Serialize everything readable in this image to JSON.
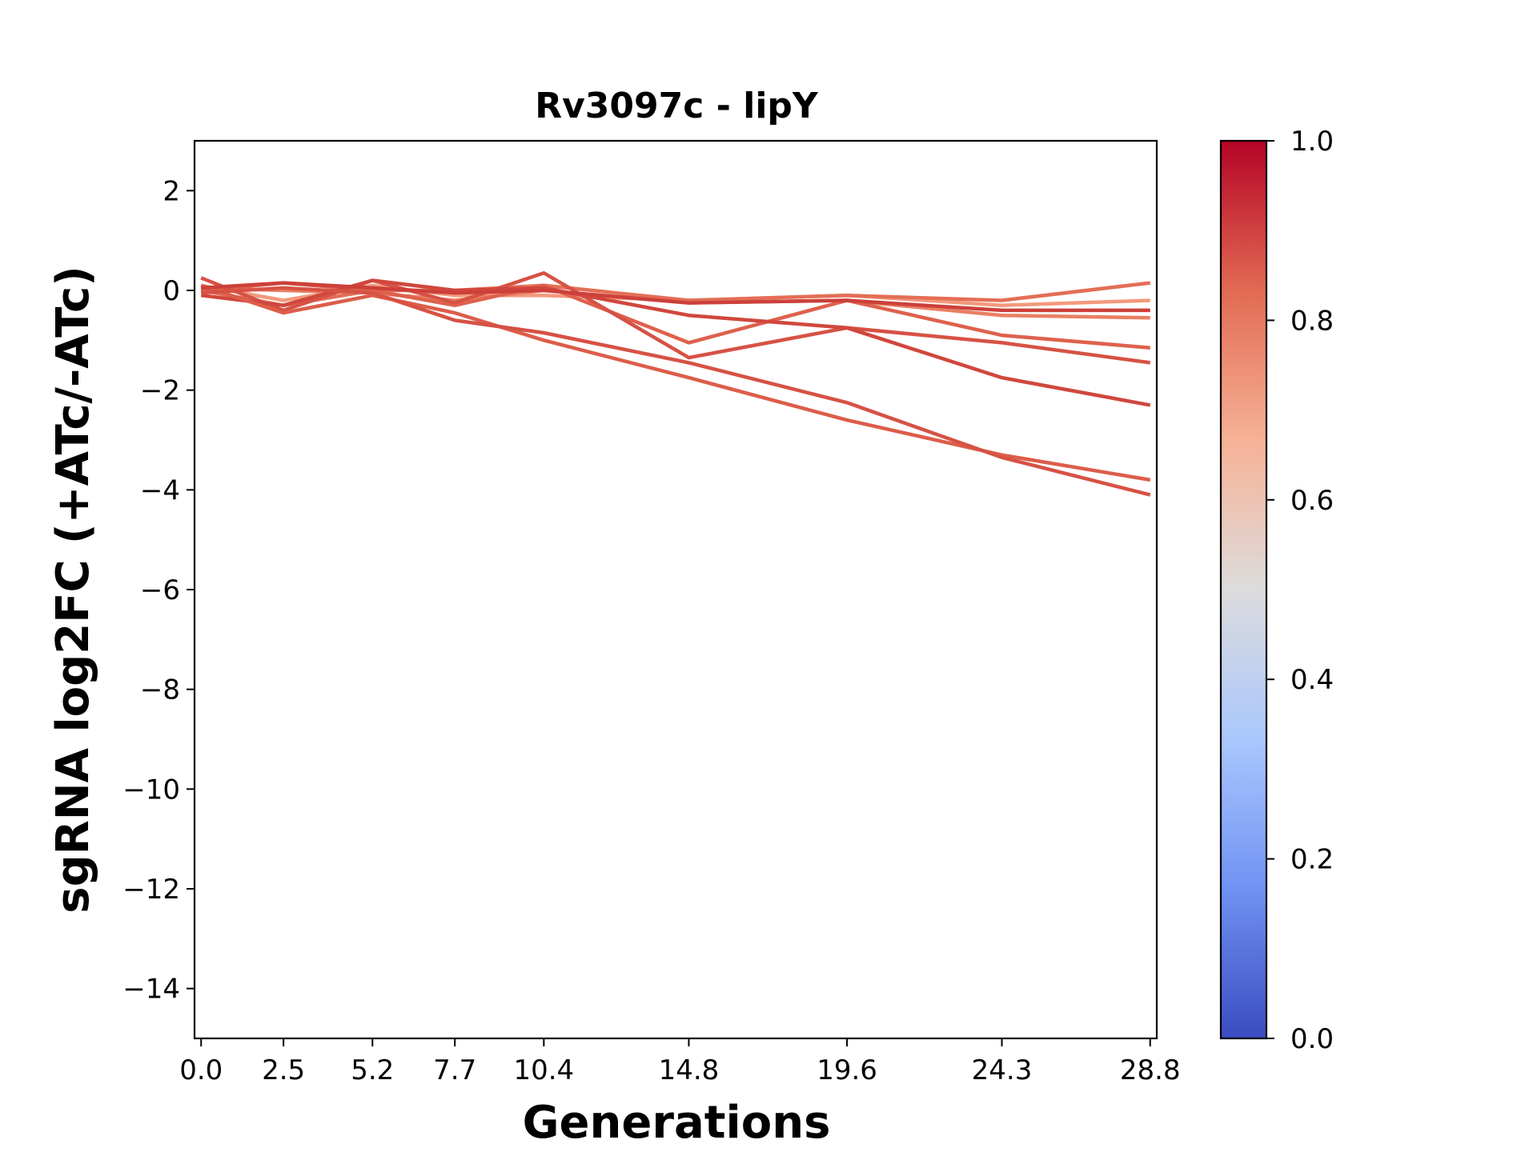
{
  "chart_data": {
    "type": "line",
    "title": "Rv3097c - lipY",
    "xlabel": "Generations",
    "ylabel": "sgRNA log2FC (+ATc/-ATc)",
    "x": [
      0.0,
      2.5,
      5.2,
      7.7,
      10.4,
      14.8,
      19.6,
      24.3,
      28.8
    ],
    "x_tick_labels": [
      "0.0",
      "2.5",
      "5.2",
      "7.7",
      "10.4",
      "14.8",
      "19.6",
      "24.3",
      "28.8"
    ],
    "ylim": [
      -15,
      3
    ],
    "y_ticks": [
      2,
      0,
      -2,
      -4,
      -6,
      -8,
      -10,
      -12,
      -14
    ],
    "y_tick_labels": [
      "2",
      "0",
      "−2",
      "−4",
      "−6",
      "−8",
      "−10",
      "−12",
      "−14"
    ],
    "grid": false,
    "series": [
      {
        "color_value": 0.72,
        "color": "#f29a7c",
        "values": [
          0.1,
          -0.2,
          0.1,
          -0.1,
          -0.1,
          -0.2,
          -0.1,
          -0.3,
          -0.2
        ]
      },
      {
        "color_value": 0.78,
        "color": "#ea7f63",
        "values": [
          0.05,
          0.0,
          -0.05,
          -0.2,
          0.0,
          -0.25,
          -0.2,
          -0.5,
          -0.55
        ]
      },
      {
        "color_value": 0.82,
        "color": "#e46e56",
        "values": [
          0.0,
          -0.3,
          0.0,
          0.0,
          0.1,
          -0.2,
          -0.1,
          -0.2,
          0.15
        ]
      },
      {
        "color_value": 0.85,
        "color": "#de614d",
        "values": [
          0.0,
          0.15,
          0.0,
          -0.3,
          0.1,
          -1.05,
          -0.2,
          -0.9,
          -1.15
        ]
      },
      {
        "color_value": 0.88,
        "color": "#d65244",
        "values": [
          0.25,
          -0.4,
          0.2,
          -0.25,
          0.35,
          -1.35,
          -0.75,
          -1.05,
          -1.45
        ]
      },
      {
        "color_value": 0.9,
        "color": "#d0473d",
        "values": [
          -0.1,
          -0.3,
          0.2,
          0.0,
          0.05,
          -0.5,
          -0.75,
          -1.75,
          -2.3
        ]
      },
      {
        "color_value": 0.86,
        "color": "#dc5d4a",
        "values": [
          0.1,
          -0.45,
          -0.1,
          -0.45,
          -1.0,
          -1.75,
          -2.6,
          -3.3,
          -3.8
        ]
      },
      {
        "color_value": 0.88,
        "color": "#d65244",
        "values": [
          -0.05,
          0.05,
          -0.05,
          -0.6,
          -0.85,
          -1.45,
          -2.25,
          -3.35,
          -4.1
        ]
      },
      {
        "color_value": 0.91,
        "color": "#cc403a",
        "values": [
          0.05,
          0.15,
          0.05,
          -0.05,
          0.0,
          -0.25,
          -0.2,
          -0.4,
          -0.4
        ]
      }
    ],
    "colorbar": {
      "min": 0.0,
      "max": 1.0,
      "ticks": [
        "0.0",
        "0.2",
        "0.4",
        "0.6",
        "0.8",
        "1.0"
      ],
      "tick_values": [
        0.0,
        0.2,
        0.4,
        0.6,
        0.8,
        1.0
      ],
      "colormap": "coolwarm",
      "stops": [
        "#3b4cc0",
        "#7092f3",
        "#aac7fd",
        "#dddcdc",
        "#f6b296",
        "#e26a53",
        "#b40426"
      ]
    }
  }
}
